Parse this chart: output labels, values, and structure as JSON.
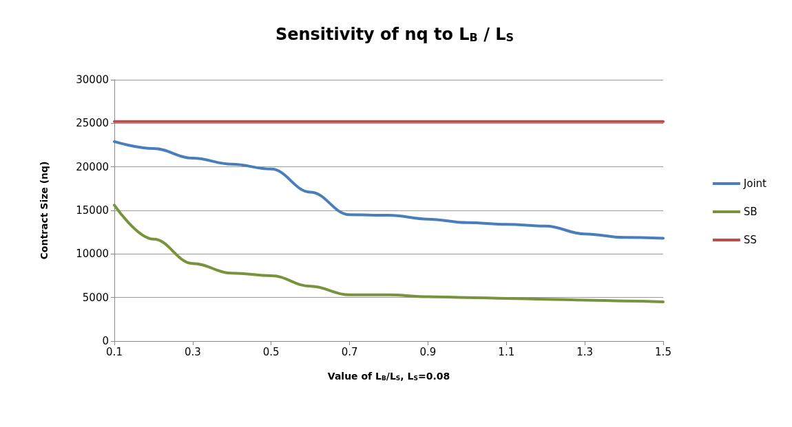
{
  "chart_data": {
    "type": "line",
    "title": "Sensitivity of nq to L$_{B}$ / L$_{S}$",
    "xlabel": "Value of L$_{B}$/L$_{S}$, L$_{S}$=0.08",
    "ylabel": "Contract Size (nq)",
    "x": [
      0.1,
      0.2,
      0.3,
      0.4,
      0.5,
      0.6,
      0.7,
      0.8,
      0.9,
      1.0,
      1.1,
      1.2,
      1.3,
      1.4,
      1.5
    ],
    "series": [
      {
        "name": "Joint",
        "color": "#4a7ebb",
        "values": [
          22900,
          22100,
          21000,
          20300,
          19750,
          17100,
          14500,
          14450,
          14000,
          13600,
          13400,
          13200,
          12300,
          11900,
          11800
        ]
      },
      {
        "name": "SB",
        "color": "#77933c",
        "values": [
          15600,
          11700,
          8900,
          7800,
          7500,
          6300,
          5300,
          5300,
          5100,
          5000,
          4900,
          4800,
          4700,
          4600,
          4500
        ]
      },
      {
        "name": "SS",
        "color": "#be4b48",
        "values": [
          25200,
          25200,
          25200,
          25200,
          25200,
          25200,
          25200,
          25200,
          25200,
          25200,
          25200,
          25200,
          25200,
          25200,
          25200
        ]
      }
    ],
    "xlim": [
      0.1,
      1.5
    ],
    "xticks": [
      0.1,
      0.3,
      0.5,
      0.7,
      0.9,
      1.1,
      1.3,
      1.5
    ],
    "ylim": [
      0,
      30000
    ],
    "yticks": [
      0,
      5000,
      10000,
      15000,
      20000,
      25000,
      30000
    ],
    "grid": "y",
    "legend": "right",
    "marker": "none",
    "line_style": "solid"
  }
}
